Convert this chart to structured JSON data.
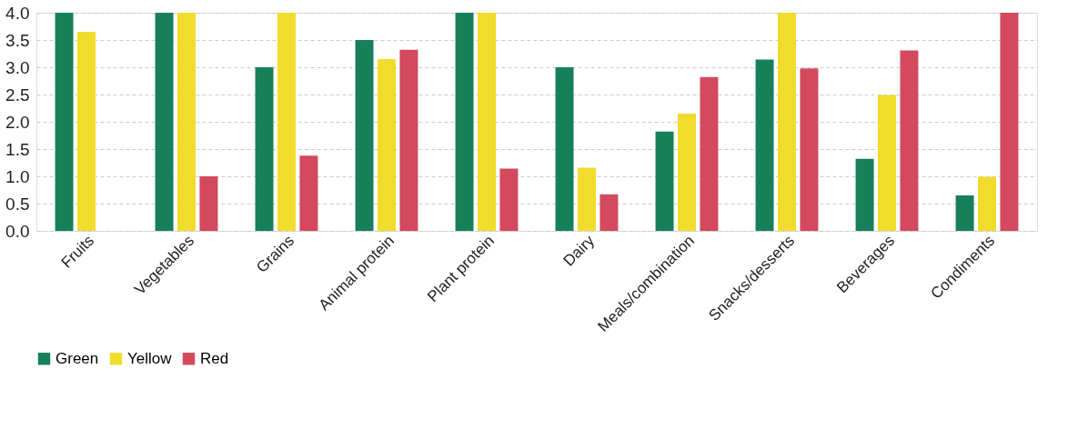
{
  "chart_data": {
    "type": "bar",
    "categories": [
      "Fruits",
      "Vegetables",
      "Grains",
      "Animal protein",
      "Plant protein",
      "Dairy",
      "Meals/combination",
      "Snacks/desserts",
      "Beverages",
      "Condiments"
    ],
    "series": [
      {
        "name": "Green",
        "color": "#17805a",
        "values": [
          4.0,
          4.0,
          3.0,
          3.5,
          4.0,
          3.0,
          1.82,
          3.14,
          1.32,
          0.65
        ]
      },
      {
        "name": "Yellow",
        "color": "#f1dc2e",
        "values": [
          3.65,
          4.0,
          4.0,
          3.15,
          4.0,
          1.16,
          2.15,
          4.0,
          2.49,
          0.99
        ]
      },
      {
        "name": "Red",
        "color": "#d24a5c",
        "values": [
          null,
          1.0,
          1.38,
          3.32,
          1.14,
          0.67,
          2.82,
          2.98,
          3.31,
          4.0
        ]
      }
    ],
    "ylim": [
      0,
      4.0
    ],
    "yticks": [
      {
        "value": 0,
        "label": "0.0"
      },
      {
        "value": 0.5,
        "label": "0.5"
      },
      {
        "value": 1,
        "label": "1.0"
      },
      {
        "value": 1.5,
        "label": "1.5"
      },
      {
        "value": 2,
        "label": "2.0"
      },
      {
        "value": 2.5,
        "label": "2.5"
      },
      {
        "value": 3,
        "label": "3.0"
      },
      {
        "value": 3.5,
        "label": "3.5"
      },
      {
        "value": 4,
        "label": "4.0"
      }
    ],
    "grid": "y",
    "legend": "bottom"
  }
}
